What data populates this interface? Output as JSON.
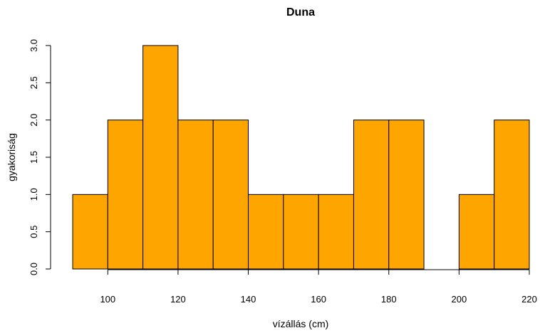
{
  "chart_data": {
    "type": "bar",
    "subtype": "histogram",
    "title": "Duna",
    "xlabel": "vízállás (cm)",
    "ylabel": "gyakoriság",
    "bins": [
      {
        "x0": 90,
        "x1": 100,
        "count": 1
      },
      {
        "x0": 100,
        "x1": 110,
        "count": 2
      },
      {
        "x0": 110,
        "x1": 120,
        "count": 3
      },
      {
        "x0": 120,
        "x1": 130,
        "count": 2
      },
      {
        "x0": 130,
        "x1": 140,
        "count": 2
      },
      {
        "x0": 140,
        "x1": 150,
        "count": 1
      },
      {
        "x0": 150,
        "x1": 160,
        "count": 1
      },
      {
        "x0": 160,
        "x1": 170,
        "count": 1
      },
      {
        "x0": 170,
        "x1": 180,
        "count": 2
      },
      {
        "x0": 180,
        "x1": 190,
        "count": 2
      },
      {
        "x0": 190,
        "x1": 200,
        "count": 0
      },
      {
        "x0": 200,
        "x1": 210,
        "count": 1
      },
      {
        "x0": 210,
        "x1": 220,
        "count": 2
      }
    ],
    "x_ticks": [
      "100",
      "120",
      "140",
      "160",
      "180",
      "200",
      "220"
    ],
    "y_ticks": [
      "0.0",
      "0.5",
      "1.0",
      "1.5",
      "2.0",
      "2.5",
      "3.0"
    ],
    "xlim": [
      90,
      220
    ],
    "ylim": [
      0,
      3
    ],
    "bar_color": "#FFA500",
    "edge_color": "#000000",
    "grid": false,
    "legend": "none"
  }
}
